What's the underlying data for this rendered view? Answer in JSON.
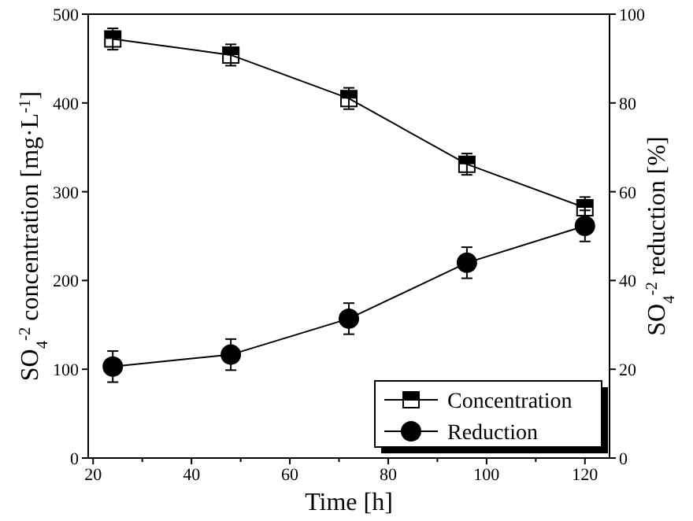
{
  "chart_data": {
    "type": "line",
    "xlabel": "Time [h]",
    "ylabel": "SO$_{4}$$^{-2}$ concentration [mg·L$^{-1}$]",
    "y2label": "SO$_{4}$$^{-2}$ reduction [%]",
    "x": [
      24,
      48,
      72,
      96,
      120
    ],
    "series": [
      {
        "name": "Concentration",
        "color": "#000000",
        "marker": "square",
        "values": [
          472,
          454,
          405,
          331,
          282
        ],
        "errors": [
          12,
          12,
          12,
          12,
          12
        ]
      },
      {
        "name": "Reduction",
        "color": "#000000",
        "marker": "circle",
        "axis": "y2",
        "values": [
          20.6,
          23.3,
          31.4,
          44,
          52.3
        ],
        "errors": [
          3.5,
          3.5,
          3.5,
          3.5,
          3.5
        ]
      }
    ],
    "xlim": [
      19,
      125
    ],
    "xticks": [
      20,
      {
        "value": 30,
        "label": null
      },
      40,
      {
        "value": 50,
        "label": null
      },
      60,
      {
        "value": 70,
        "label": null
      },
      80,
      {
        "value": 90,
        "label": null
      },
      100,
      {
        "value": 110,
        "label": null
      },
      120
    ],
    "ylim": [
      0,
      500
    ],
    "yticks": [
      0,
      100,
      200,
      300,
      400,
      500
    ],
    "y2lim": [
      0,
      100
    ],
    "y2ticks": [
      0,
      20,
      40,
      60,
      80,
      100
    ],
    "grid": false,
    "legend": "bottom right",
    "line_style": "solid"
  }
}
